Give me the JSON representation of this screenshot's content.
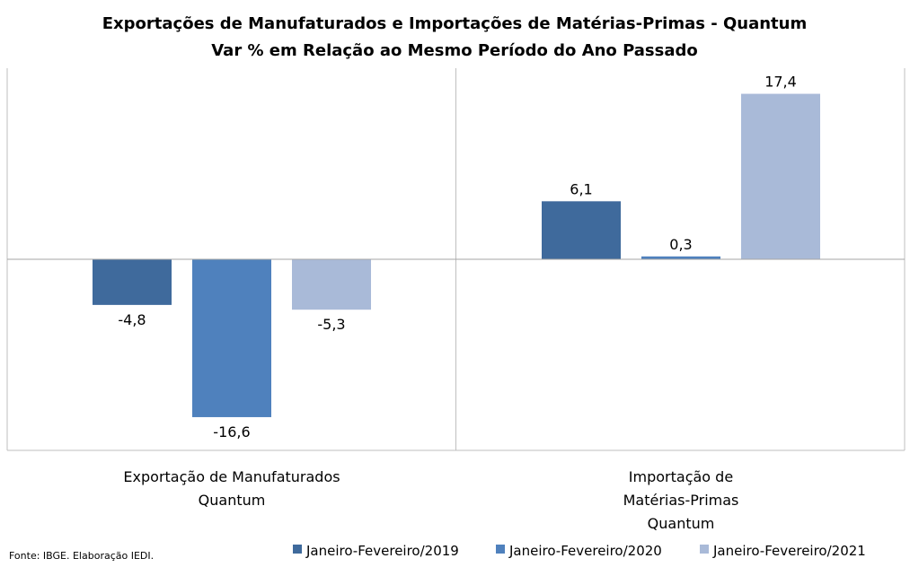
{
  "chart_data": {
    "type": "bar",
    "title": "Exportações de Manufaturados e Importações de Matérias-Primas - Quantum",
    "subtitle": "Var % em Relação ao Mesmo Período do Ano Passado",
    "categories": [
      [
        "Exportação de Manufaturados",
        "Quantum"
      ],
      [
        "Importação de",
        "Matérias-Primas",
        "Quantum"
      ]
    ],
    "series": [
      {
        "name": "Janeiro-Fevereiro/2019",
        "values": [
          -4.8,
          6.1
        ],
        "labels": [
          "-4,8",
          "6,1"
        ],
        "color": "#3F6A9C"
      },
      {
        "name": "Janeiro-Fevereiro/2020",
        "values": [
          -16.6,
          0.3
        ],
        "labels": [
          "-16,6",
          "0,3"
        ],
        "color": "#4F81BD"
      },
      {
        "name": "Janeiro-Fevereiro/2021",
        "values": [
          -5.3,
          17.4
        ],
        "labels": [
          "-5,3",
          "17,4"
        ],
        "color": "#A9BAD8"
      }
    ],
    "ylim": [
      -20,
      20
    ],
    "grid": false,
    "legend_position": "bottom-right",
    "source": "Fonte: IBGE. Elaboração IEDI."
  }
}
